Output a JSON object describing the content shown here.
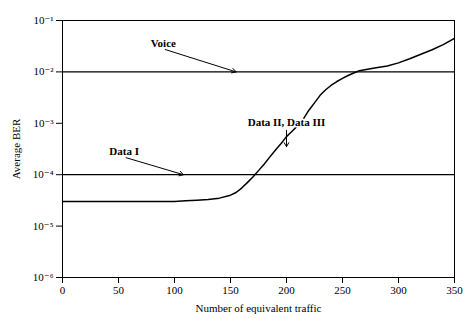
{
  "chart_data": {
    "type": "line",
    "xlabel": "Number of equivalent traffic",
    "ylabel": "Average BER",
    "x": [
      0,
      10,
      20,
      30,
      40,
      50,
      60,
      70,
      80,
      90,
      100,
      110,
      120,
      130,
      140,
      150,
      155,
      160,
      165,
      170,
      175,
      180,
      185,
      190,
      195,
      200,
      205,
      210,
      215,
      220,
      225,
      230,
      235,
      240,
      245,
      250,
      255,
      260,
      265,
      270,
      275,
      280,
      290,
      300,
      310,
      320,
      330,
      340,
      350
    ],
    "values": [
      3e-05,
      3e-05,
      3e-05,
      3e-05,
      3e-05,
      3e-05,
      3e-05,
      3e-05,
      3e-05,
      3e-05,
      3e-05,
      3.1e-05,
      3.2e-05,
      3.3e-05,
      3.5e-05,
      4e-05,
      4.5e-05,
      5.5e-05,
      7e-05,
      9e-05,
      0.00012,
      0.00016,
      0.00022,
      0.0003,
      0.0004,
      0.00055,
      0.0007,
      0.0009,
      0.0012,
      0.0018,
      0.0025,
      0.0035,
      0.0045,
      0.0055,
      0.0065,
      0.0075,
      0.0085,
      0.0095,
      0.0105,
      0.011,
      0.0115,
      0.012,
      0.013,
      0.015,
      0.018,
      0.022,
      0.027,
      0.034,
      0.045
    ],
    "color": "#000000",
    "reference_lines": {
      "values": [
        0.01,
        0.0001
      ],
      "color": "#000000"
    },
    "log": "y",
    "xlim": [
      0,
      350
    ],
    "xticks": [
      0,
      50,
      100,
      150,
      200,
      250,
      300,
      350
    ],
    "ylim": [
      1e-06,
      0.1
    ],
    "yticks": [
      {
        "value": 1e-06,
        "label": "10⁻⁶"
      },
      {
        "value": 1e-05,
        "label": "10⁻⁵"
      },
      {
        "value": 0.0001,
        "label": "10⁻⁴"
      },
      {
        "value": 0.001,
        "label": "10⁻³"
      },
      {
        "value": 0.01,
        "label": "10⁻²"
      },
      {
        "value": 0.1,
        "label": "10⁻¹"
      }
    ],
    "grid": false,
    "annotations": [
      {
        "text": "Voice",
        "xy": [
          155,
          0.01
        ],
        "xytext": [
          90,
          0.028
        ],
        "arrow": true
      },
      {
        "text": "Data II, Data III",
        "xy": [
          200,
          0.00035
        ],
        "xytext": [
          200,
          0.0008
        ],
        "arrow": true
      },
      {
        "text": "Data I",
        "xy": [
          108,
          0.0001
        ],
        "xytext": [
          55,
          0.00022
        ],
        "arrow": true
      }
    ]
  }
}
